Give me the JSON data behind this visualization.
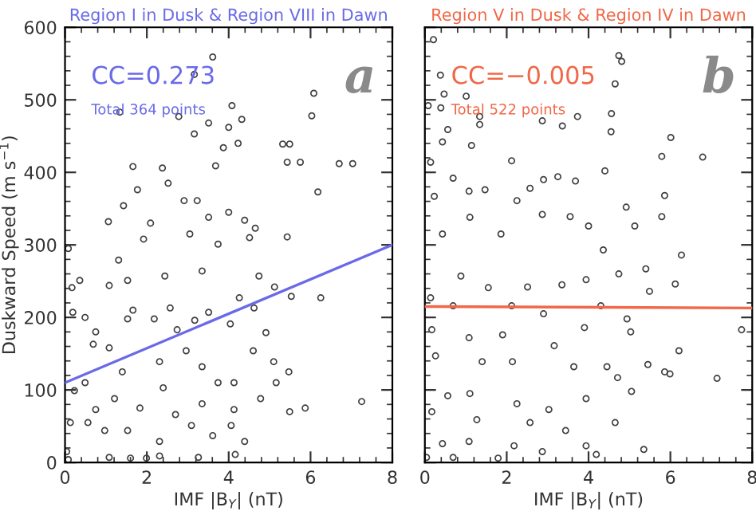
{
  "chart_data": [
    {
      "type": "scatter",
      "title": "Region I in Dusk & Region VIII in Dawn",
      "xlabel": "IMF |B$_{Y}$| (nT)",
      "ylabel": "Duskward Speed (m s$^{−1}$)",
      "annotations": [
        "CC=0.273",
        "Total 364 points",
        "a"
      ],
      "xlim": [
        0,
        8
      ],
      "ylim": [
        0,
        600
      ],
      "xticks": [
        0,
        2,
        4,
        6,
        8
      ],
      "yticks": [
        0,
        100,
        200,
        300,
        400,
        500,
        600
      ],
      "grid": false,
      "legend": false,
      "series": [
        {
          "marker": "circle",
          "color": "#404040",
          "x": [
            3.61,
            3.16,
            1.34,
            2.78,
            4.08,
            6.08,
            6.03,
            3.51,
            4.32,
            3.16,
            4.0,
            5.32,
            5.49,
            1.66,
            2.38,
            3.68,
            5.43,
            5.75,
            7.03,
            6.7,
            3.87,
            4.23,
            1.77,
            2.52,
            6.18,
            1.43,
            2.91,
            3.23,
            1.31,
            1.06,
            2.09,
            3.51,
            4.0,
            4.39,
            4.65,
            0.08,
            0.36,
            1.08,
            1.53,
            1.92,
            3.05,
            3.74,
            4.51,
            5.43,
            2.44,
            3.35,
            4.74,
            5.12,
            5.53,
            6.25,
            0.17,
            0.19,
            0.49,
            0.75,
            0.69,
            1.08,
            1.53,
            1.66,
            2.18,
            2.57,
            2.74,
            3.17,
            3.51,
            4.04,
            4.26,
            4.62,
            4.91,
            4.6,
            5.1,
            5.47,
            5.16,
            4.13,
            2.96,
            3.35,
            2.31,
            1.4,
            0.49,
            0.23,
            0.75,
            1.21,
            1.83,
            2.4,
            2.7,
            3.35,
            3.74,
            4.13,
            4.78,
            5.49,
            5.87,
            7.25,
            0.13,
            0.56,
            0.97,
            1.53,
            2.31,
            3.09,
            3.61,
            4.06,
            4.39,
            0.04,
            1.08,
            1.6,
            2.31,
            3.26,
            4.16,
            0.08,
            1.99
          ],
          "values": [
            559,
            535,
            483,
            477,
            492,
            509,
            478,
            468,
            473,
            453,
            462,
            439,
            439,
            408,
            406,
            409,
            414,
            414,
            412,
            412,
            434,
            440,
            376,
            385,
            373,
            354,
            361,
            361,
            279,
            332,
            330,
            338,
            345,
            334,
            323,
            295,
            251,
            244,
            251,
            308,
            315,
            301,
            310,
            311,
            257,
            264,
            257,
            242,
            229,
            227,
            241,
            207,
            200,
            180,
            163,
            158,
            198,
            210,
            198,
            213,
            183,
            196,
            207,
            191,
            227,
            213,
            179,
            154,
            139,
            125,
            110,
            110,
            154,
            132,
            139,
            125,
            110,
            99,
            73,
            88,
            75,
            103,
            66,
            81,
            110,
            73,
            88,
            70,
            75,
            84,
            55,
            55,
            44,
            44,
            29,
            51,
            37,
            51,
            29,
            15,
            7,
            6,
            9,
            7,
            11,
            4,
            6
          ]
        },
        {
          "type": "line",
          "marker": "none",
          "line_style": "solid",
          "color": "#6a6ae8",
          "x": [
            0,
            8
          ],
          "values": [
            110,
            300
          ]
        }
      ]
    },
    {
      "type": "scatter",
      "title": "Region V in Dusk & Region IV in Dawn",
      "xlabel": "IMF |B$_{Y}$| (nT)",
      "annotations": [
        "CC=−0.005",
        "Total 522 points",
        "b"
      ],
      "xlim": [
        0,
        8
      ],
      "ylim": [
        0,
        600
      ],
      "xticks": [
        0,
        2,
        4,
        6,
        8
      ],
      "yticks": [
        0,
        100,
        200,
        300,
        400,
        500,
        600
      ],
      "tick_labels": "x",
      "grid": false,
      "legend": false,
      "series": [
        {
          "marker": "circle",
          "color": "#404040",
          "x": [
            0.21,
            4.74,
            4.81,
            4.65,
            0.38,
            0.47,
            1.01,
            0.39,
            0.08,
            1.34,
            1.34,
            0.56,
            2.87,
            3.73,
            3.36,
            4.56,
            4.55,
            6.01,
            0.43,
            1.14,
            2.12,
            5.79,
            6.79,
            0.14,
            0.69,
            2.9,
            3.25,
            3.68,
            4.4,
            1.08,
            1.47,
            2.25,
            2.57,
            0.23,
            4.92,
            5.86,
            2.87,
            3.55,
            1.1,
            0.43,
            1.86,
            4.0,
            5.13,
            5.79,
            6.27,
            4.36,
            4.74,
            5.4,
            0.88,
            1.55,
            2.51,
            3.35,
            3.94,
            5.49,
            6.12,
            0.14,
            0.69,
            2.12,
            2.9,
            4.3,
            7.74,
            4.94,
            5.03,
            3.9,
            0.17,
            1.08,
            1.9,
            3.16,
            0.26,
            1.4,
            2.14,
            3.64,
            4.45,
            6.21,
            5.45,
            5.86,
            5.99,
            7.14,
            5.05,
            4.71,
            0.56,
            1.1,
            2.25,
            3.03,
            3.94,
            0.17,
            1.27,
            2.57,
            3.44,
            4.65,
            0.43,
            1.08,
            2.18,
            2.87,
            3.94,
            4.19,
            5.35,
            1.79,
            0.04,
            0.69
          ],
          "values": [
            583,
            561,
            553,
            522,
            534,
            508,
            505,
            489,
            492,
            477,
            466,
            459,
            471,
            477,
            464,
            481,
            456,
            448,
            442,
            437,
            416,
            422,
            421,
            414,
            392,
            390,
            394,
            388,
            402,
            374,
            376,
            361,
            378,
            367,
            352,
            368,
            342,
            339,
            338,
            315,
            315,
            326,
            326,
            339,
            286,
            293,
            260,
            267,
            257,
            241,
            242,
            245,
            252,
            236,
            246,
            227,
            216,
            216,
            205,
            216,
            183,
            198,
            180,
            186,
            183,
            172,
            176,
            161,
            147,
            139,
            139,
            132,
            132,
            154,
            135,
            125,
            122,
            116,
            98,
            117,
            92,
            95,
            81,
            73,
            88,
            70,
            59,
            55,
            44,
            55,
            26,
            29,
            23,
            15,
            23,
            11,
            18,
            6,
            7,
            7
          ]
        },
        {
          "type": "line",
          "marker": "none",
          "line_style": "solid",
          "color": "#f06848",
          "x": [
            0,
            8
          ],
          "values": [
            215,
            213
          ]
        }
      ]
    }
  ]
}
